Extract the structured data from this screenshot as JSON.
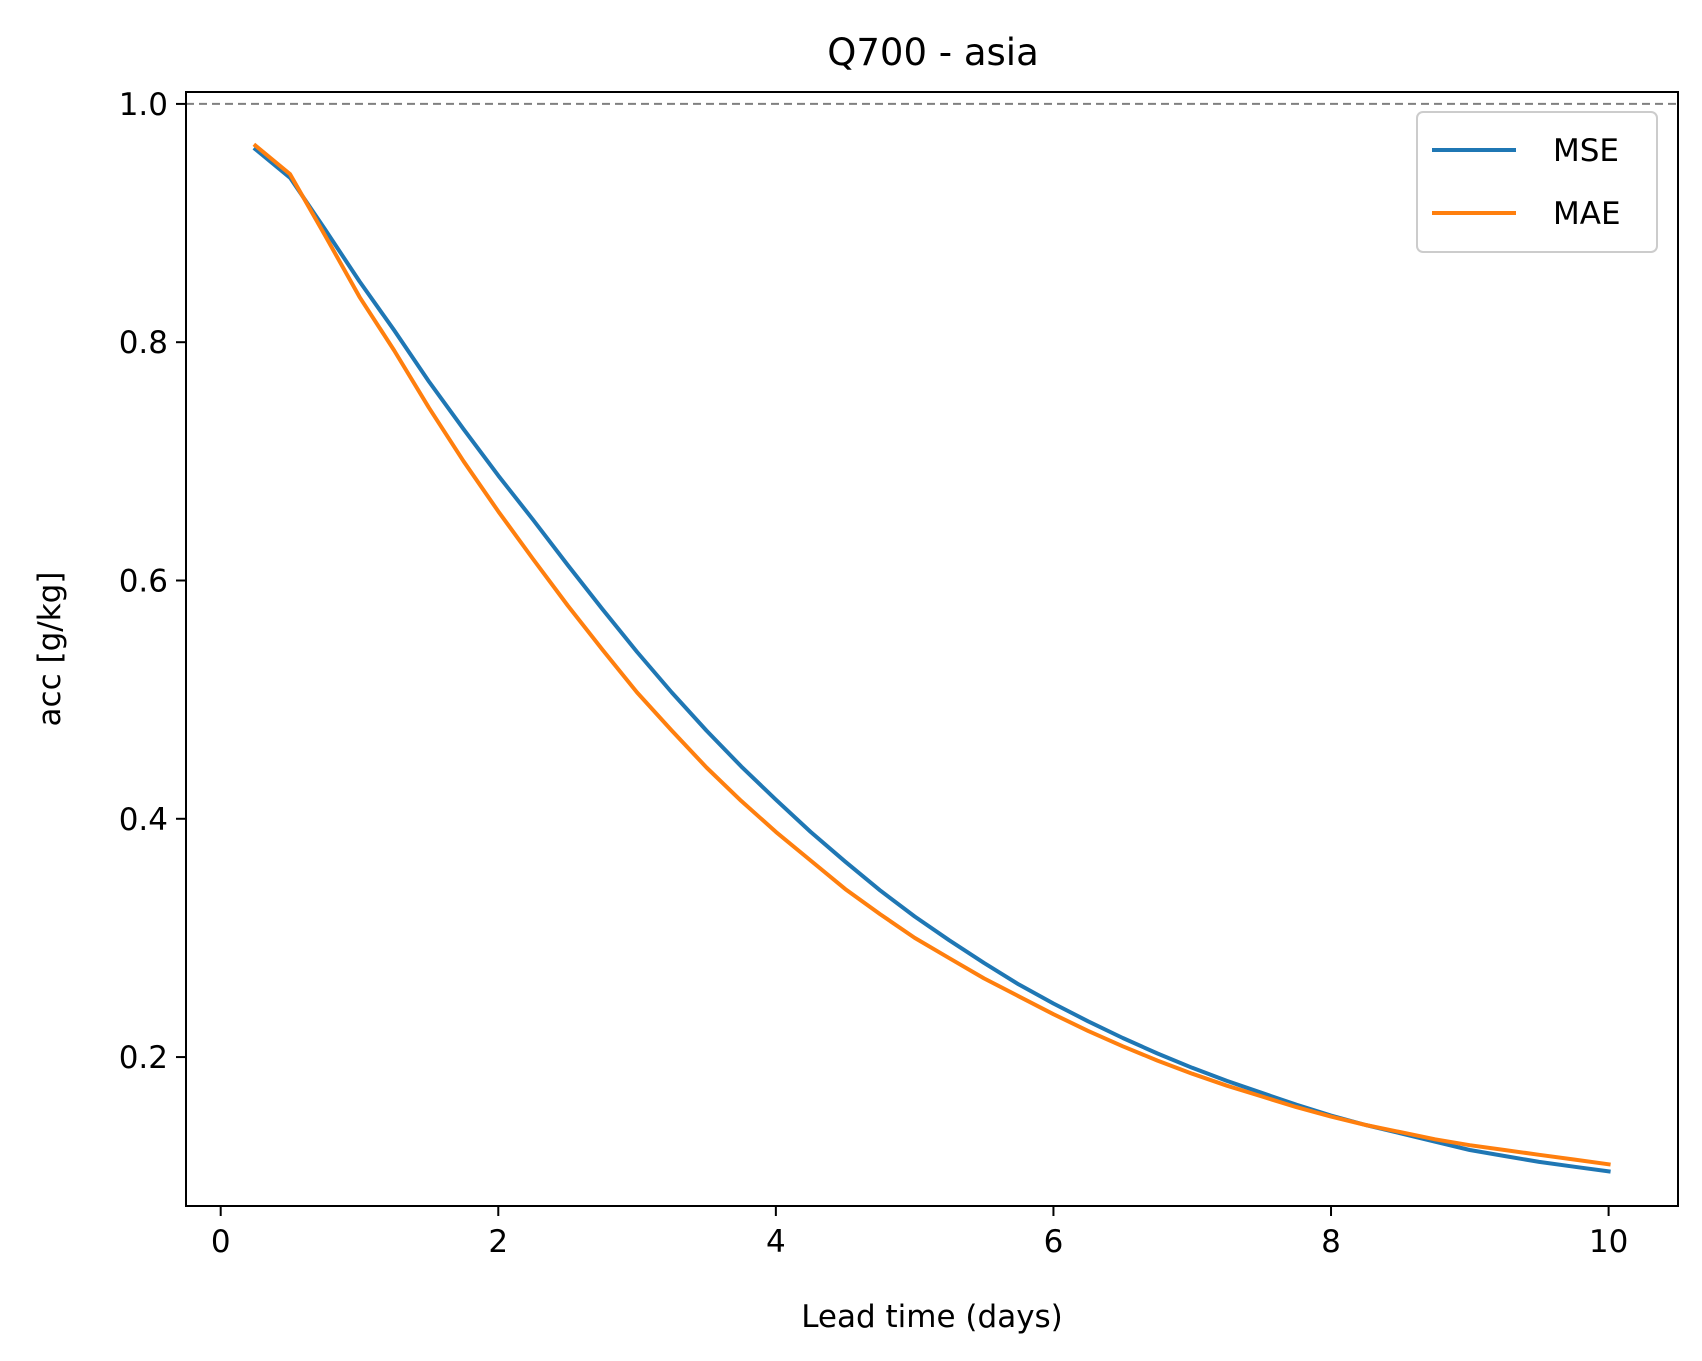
{
  "chart_data": {
    "type": "line",
    "title": "Q700 - asia",
    "xlabel": "Lead time (days)",
    "ylabel": "acc [g/kg]",
    "xlim": [
      -0.25,
      10.5
    ],
    "ylim": [
      0.075,
      1.01
    ],
    "xticks": [
      0,
      2,
      4,
      6,
      8,
      10
    ],
    "xtick_labels": [
      "0",
      "2",
      "4",
      "6",
      "8",
      "10"
    ],
    "yticks": [
      0.2,
      0.4,
      0.6,
      0.8,
      1.0
    ],
    "ytick_labels": [
      "0.2",
      "0.4",
      "0.6",
      "0.8",
      "1.0"
    ],
    "grid": false,
    "legend_position": "top-right",
    "reference_line": {
      "y": 1.0,
      "style": "dashed",
      "color": "#808080"
    },
    "x": [
      0.25,
      0.5,
      0.75,
      1.0,
      1.25,
      1.5,
      1.75,
      2.0,
      2.25,
      2.5,
      2.75,
      3.0,
      3.25,
      3.5,
      3.75,
      4.0,
      4.25,
      4.5,
      4.75,
      5.0,
      5.25,
      5.5,
      5.75,
      6.0,
      6.25,
      6.5,
      6.75,
      7.0,
      7.25,
      7.5,
      7.75,
      8.0,
      8.25,
      8.5,
      8.75,
      9.0,
      9.25,
      9.5,
      9.75,
      10.0
    ],
    "series": [
      {
        "name": "MSE",
        "color": "#1f77b4",
        "values": [
          0.962,
          0.938,
          0.895,
          0.851,
          0.81,
          0.767,
          0.727,
          0.688,
          0.651,
          0.613,
          0.576,
          0.54,
          0.506,
          0.474,
          0.444,
          0.416,
          0.389,
          0.364,
          0.34,
          0.318,
          0.298,
          0.279,
          0.261,
          0.245,
          0.23,
          0.216,
          0.203,
          0.191,
          0.18,
          0.17,
          0.16,
          0.151,
          0.143,
          0.136,
          0.129,
          0.122,
          0.117,
          0.112,
          0.108,
          0.104
        ]
      },
      {
        "name": "MAE",
        "color": "#ff7f0e",
        "values": [
          0.965,
          0.941,
          0.89,
          0.838,
          0.793,
          0.745,
          0.7,
          0.658,
          0.618,
          0.579,
          0.542,
          0.506,
          0.474,
          0.443,
          0.415,
          0.389,
          0.365,
          0.341,
          0.32,
          0.3,
          0.283,
          0.266,
          0.251,
          0.236,
          0.222,
          0.209,
          0.197,
          0.186,
          0.176,
          0.167,
          0.158,
          0.15,
          0.143,
          0.137,
          0.131,
          0.126,
          0.122,
          0.118,
          0.114,
          0.11
        ]
      }
    ]
  }
}
